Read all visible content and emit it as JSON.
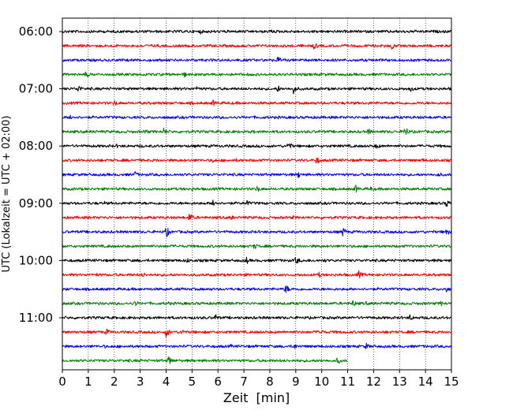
{
  "chart_data": {
    "type": "line",
    "xlabel": "Zeit  [min]",
    "ylabel": "UTC (Lokalzeit = UTC + 02:00)",
    "xlim": [
      0,
      15
    ],
    "x_ticks": [
      0,
      1,
      2,
      3,
      4,
      5,
      6,
      7,
      8,
      9,
      10,
      11,
      12,
      13,
      14,
      15
    ],
    "y_tick_labels": [
      "06:00",
      "07:00",
      "08:00",
      "09:00",
      "10:00",
      "11:00"
    ],
    "grid": "vertical dotted lines at each minute",
    "line_colors": [
      "#000000",
      "#ff0000",
      "#0000ff",
      "#008000"
    ],
    "series": [
      {
        "start": "06:00",
        "color": "#000000",
        "x_end": 15,
        "events": [
          {
            "x": 5.3,
            "amp": 4
          },
          {
            "x": 7.5,
            "amp": 2
          },
          {
            "x": 8.0,
            "amp": 4
          },
          {
            "x": 12.6,
            "amp": 2
          }
        ]
      },
      {
        "start": "06:15",
        "color": "#ff0000",
        "x_end": 15,
        "events": [
          {
            "x": 3.9,
            "amp": 2
          },
          {
            "x": 9.7,
            "amp": 6
          },
          {
            "x": 12.7,
            "amp": 5
          },
          {
            "x": 13.3,
            "amp": 2
          }
        ]
      },
      {
        "start": "06:30",
        "color": "#0000ff",
        "x_end": 15,
        "events": [
          {
            "x": 8.3,
            "amp": 6
          },
          {
            "x": 8.6,
            "amp": 2
          }
        ]
      },
      {
        "start": "06:45",
        "color": "#008000",
        "x_end": 15,
        "events": [
          {
            "x": 0.9,
            "amp": 5
          },
          {
            "x": 3.2,
            "amp": 2
          },
          {
            "x": 4.7,
            "amp": 4
          }
        ]
      },
      {
        "start": "07:00",
        "color": "#000000",
        "x_end": 15,
        "events": [
          {
            "x": 0.6,
            "amp": 6
          },
          {
            "x": 5.2,
            "amp": 4
          },
          {
            "x": 8.3,
            "amp": 5
          },
          {
            "x": 8.9,
            "amp": 7
          },
          {
            "x": 13.4,
            "amp": 5
          }
        ]
      },
      {
        "start": "07:15",
        "color": "#ff0000",
        "x_end": 15,
        "events": [
          {
            "x": 2.0,
            "amp": 5
          },
          {
            "x": 5.8,
            "amp": 5
          },
          {
            "x": 3.4,
            "amp": 2
          }
        ]
      },
      {
        "start": "07:30",
        "color": "#0000ff",
        "x_end": 15,
        "events": [
          {
            "x": 0.3,
            "amp": 5
          },
          {
            "x": 2.6,
            "amp": 2
          },
          {
            "x": 9.3,
            "amp": 2
          }
        ]
      },
      {
        "start": "07:45",
        "color": "#008000",
        "x_end": 15,
        "events": [
          {
            "x": 1.2,
            "amp": 3
          },
          {
            "x": 3.2,
            "amp": 4
          },
          {
            "x": 3.9,
            "amp": 6
          },
          {
            "x": 7.3,
            "amp": 3
          },
          {
            "x": 11.8,
            "amp": 5
          },
          {
            "x": 13.2,
            "amp": 8
          }
        ]
      },
      {
        "start": "08:00",
        "color": "#000000",
        "x_end": 15,
        "events": [
          {
            "x": 2.1,
            "amp": 3
          },
          {
            "x": 3.0,
            "amp": 3
          },
          {
            "x": 8.7,
            "amp": 7
          },
          {
            "x": 12.1,
            "amp": 5
          }
        ]
      },
      {
        "start": "08:15",
        "color": "#ff0000",
        "x_end": 15,
        "events": [
          {
            "x": 2.6,
            "amp": 2
          },
          {
            "x": 5.8,
            "amp": 4
          },
          {
            "x": 6.7,
            "amp": 3
          },
          {
            "x": 9.8,
            "amp": 6
          },
          {
            "x": 13.9,
            "amp": 3
          }
        ]
      },
      {
        "start": "08:30",
        "color": "#0000ff",
        "x_end": 15,
        "events": [
          {
            "x": 2.8,
            "amp": 5
          },
          {
            "x": 6.6,
            "amp": 2
          },
          {
            "x": 9.1,
            "amp": 5
          },
          {
            "x": 11.5,
            "amp": 2
          },
          {
            "x": 14.5,
            "amp": 4
          }
        ]
      },
      {
        "start": "08:45",
        "color": "#008000",
        "x_end": 15,
        "events": [
          {
            "x": 1.3,
            "amp": 2
          },
          {
            "x": 5.0,
            "amp": 3
          },
          {
            "x": 7.5,
            "amp": 5
          },
          {
            "x": 11.3,
            "amp": 6
          },
          {
            "x": 11.9,
            "amp": 4
          }
        ]
      },
      {
        "start": "09:00",
        "color": "#000000",
        "x_end": 15,
        "events": [
          {
            "x": 1.6,
            "amp": 3
          },
          {
            "x": 5.8,
            "amp": 7
          },
          {
            "x": 7.1,
            "amp": 5
          },
          {
            "x": 14.8,
            "amp": 6
          }
        ]
      },
      {
        "start": "09:15",
        "color": "#ff0000",
        "x_end": 15,
        "events": [
          {
            "x": 1.4,
            "amp": 2
          },
          {
            "x": 4.9,
            "amp": 7
          },
          {
            "x": 6.5,
            "amp": 4
          },
          {
            "x": 8.9,
            "amp": 3
          },
          {
            "x": 14.4,
            "amp": 2
          }
        ]
      },
      {
        "start": "09:30",
        "color": "#0000ff",
        "x_end": 15,
        "events": [
          {
            "x": 4.0,
            "amp": 8
          },
          {
            "x": 6.9,
            "amp": 2
          },
          {
            "x": 10.8,
            "amp": 7
          },
          {
            "x": 14.8,
            "amp": 6
          }
        ]
      },
      {
        "start": "09:45",
        "color": "#008000",
        "x_end": 15,
        "events": [
          {
            "x": 1.8,
            "amp": 3
          },
          {
            "x": 3.0,
            "amp": 2
          },
          {
            "x": 7.4,
            "amp": 5
          },
          {
            "x": 9.4,
            "amp": 2
          }
        ]
      },
      {
        "start": "10:00",
        "color": "#000000",
        "x_end": 15,
        "events": [
          {
            "x": 2.9,
            "amp": 2
          },
          {
            "x": 4.8,
            "amp": 4
          },
          {
            "x": 7.1,
            "amp": 5
          },
          {
            "x": 9.0,
            "amp": 6
          },
          {
            "x": 10.1,
            "amp": 3
          }
        ]
      },
      {
        "start": "10:15",
        "color": "#ff0000",
        "x_end": 15,
        "events": [
          {
            "x": 1.3,
            "amp": 3
          },
          {
            "x": 3.1,
            "amp": 4
          },
          {
            "x": 9.9,
            "amp": 4
          },
          {
            "x": 11.4,
            "amp": 7
          }
        ]
      },
      {
        "start": "10:30",
        "color": "#0000ff",
        "x_end": 15,
        "events": [
          {
            "x": 5.6,
            "amp": 2
          },
          {
            "x": 8.6,
            "amp": 7
          },
          {
            "x": 14.8,
            "amp": 5
          }
        ]
      },
      {
        "start": "10:45",
        "color": "#008000",
        "x_end": 15,
        "events": [
          {
            "x": 2.8,
            "amp": 5
          },
          {
            "x": 4.1,
            "amp": 3
          },
          {
            "x": 11.2,
            "amp": 5
          },
          {
            "x": 11.7,
            "amp": 3
          },
          {
            "x": 14.6,
            "amp": 4
          }
        ]
      },
      {
        "start": "11:00",
        "color": "#000000",
        "x_end": 15,
        "events": [
          {
            "x": 1.2,
            "amp": 2
          },
          {
            "x": 5.9,
            "amp": 5
          },
          {
            "x": 13.4,
            "amp": 5
          },
          {
            "x": 14.1,
            "amp": 2
          }
        ]
      },
      {
        "start": "11:15",
        "color": "#ff0000",
        "x_end": 15,
        "events": [
          {
            "x": 1.7,
            "amp": 5
          },
          {
            "x": 4.0,
            "amp": 7
          },
          {
            "x": 4.6,
            "amp": 5
          },
          {
            "x": 9.9,
            "amp": 6
          },
          {
            "x": 13.3,
            "amp": 2
          }
        ]
      },
      {
        "start": "11:30",
        "color": "#0000ff",
        "x_end": 15,
        "events": [
          {
            "x": 1.6,
            "amp": 3
          },
          {
            "x": 6.5,
            "amp": 3
          },
          {
            "x": 8.9,
            "amp": 6
          },
          {
            "x": 11.7,
            "amp": 5
          }
        ]
      },
      {
        "start": "11:45",
        "color": "#008000",
        "x_end": 11,
        "events": [
          {
            "x": 2.5,
            "amp": 3
          },
          {
            "x": 3.0,
            "amp": 3
          },
          {
            "x": 4.1,
            "amp": 7
          },
          {
            "x": 10.6,
            "amp": 5
          }
        ]
      }
    ]
  }
}
